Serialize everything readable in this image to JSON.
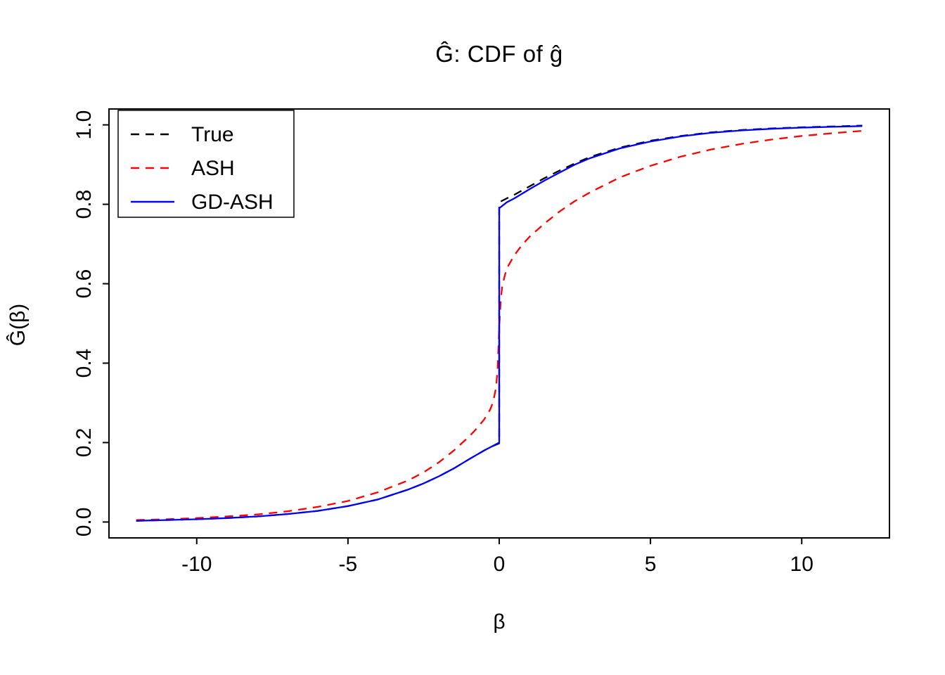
{
  "chart_data": {
    "type": "line",
    "title": "Ĝ: CDF of ĝ",
    "xlabel": "β",
    "ylabel": "Ĝ(β)",
    "xlim": [
      -12.9,
      12.9
    ],
    "ylim": [
      -0.04,
      1.04
    ],
    "grid": false,
    "legend_position": "top-left",
    "xticks": [
      {
        "value": -10,
        "label": "-10"
      },
      {
        "value": -5,
        "label": "-5"
      },
      {
        "value": 0,
        "label": "0"
      },
      {
        "value": 5,
        "label": "5"
      },
      {
        "value": 10,
        "label": "10"
      }
    ],
    "yticks": [
      {
        "value": 0.0,
        "label": "0.0"
      },
      {
        "value": 0.2,
        "label": "0.2"
      },
      {
        "value": 0.4,
        "label": "0.4"
      },
      {
        "value": 0.6,
        "label": "0.6"
      },
      {
        "value": 0.8,
        "label": "0.8"
      },
      {
        "value": 1.0,
        "label": "1.0"
      }
    ],
    "legend": {
      "entries": [
        {
          "label": "True",
          "color": "#000000",
          "dash": "dashed"
        },
        {
          "label": "ASH",
          "color": "#FF0000",
          "dash": "dashed"
        },
        {
          "label": "GD-ASH",
          "color": "#0000FF",
          "dash": "solid"
        }
      ]
    },
    "series": [
      {
        "name": "True",
        "color": "#000000",
        "dash": "dashed",
        "points": [
          [
            -12,
            0.003
          ],
          [
            -11,
            0.005
          ],
          [
            -10,
            0.007
          ],
          [
            -9,
            0.01
          ],
          [
            -8,
            0.014
          ],
          [
            -7,
            0.02
          ],
          [
            -6,
            0.028
          ],
          [
            -5,
            0.04
          ],
          [
            -4,
            0.057
          ],
          [
            -3,
            0.082
          ],
          [
            -2.5,
            0.097
          ],
          [
            -2,
            0.115
          ],
          [
            -1.5,
            0.135
          ],
          [
            -1,
            0.158
          ],
          [
            -0.5,
            0.18
          ],
          [
            -0.25,
            0.19
          ],
          [
            0,
            0.198
          ],
          [
            0,
            0.805
          ],
          [
            0.25,
            0.815
          ],
          [
            0.5,
            0.824
          ],
          [
            1,
            0.845
          ],
          [
            1.5,
            0.866
          ],
          [
            2,
            0.885
          ],
          [
            2.5,
            0.903
          ],
          [
            3,
            0.919
          ],
          [
            4,
            0.943
          ],
          [
            5,
            0.96
          ],
          [
            6,
            0.972
          ],
          [
            7,
            0.981
          ],
          [
            8,
            0.987
          ],
          [
            9,
            0.991
          ],
          [
            10,
            0.994
          ],
          [
            11,
            0.996
          ],
          [
            12,
            0.998
          ]
        ]
      },
      {
        "name": "ASH",
        "color": "#FF0000",
        "dash": "dashed",
        "points": [
          [
            -12,
            0.005
          ],
          [
            -11,
            0.007
          ],
          [
            -10,
            0.01
          ],
          [
            -9,
            0.014
          ],
          [
            -8,
            0.019
          ],
          [
            -7,
            0.027
          ],
          [
            -6,
            0.038
          ],
          [
            -5,
            0.053
          ],
          [
            -4,
            0.075
          ],
          [
            -3,
            0.105
          ],
          [
            -2.5,
            0.125
          ],
          [
            -2,
            0.15
          ],
          [
            -1.5,
            0.18
          ],
          [
            -1,
            0.215
          ],
          [
            -0.75,
            0.235
          ],
          [
            -0.5,
            0.258
          ],
          [
            -0.3,
            0.283
          ],
          [
            -0.2,
            0.303
          ],
          [
            -0.1,
            0.34
          ],
          [
            -0.05,
            0.39
          ],
          [
            0,
            0.49
          ],
          [
            0.05,
            0.56
          ],
          [
            0.1,
            0.595
          ],
          [
            0.2,
            0.625
          ],
          [
            0.3,
            0.645
          ],
          [
            0.5,
            0.672
          ],
          [
            0.75,
            0.697
          ],
          [
            1,
            0.718
          ],
          [
            1.5,
            0.752
          ],
          [
            2,
            0.782
          ],
          [
            2.5,
            0.808
          ],
          [
            3,
            0.83
          ],
          [
            4,
            0.868
          ],
          [
            5,
            0.897
          ],
          [
            6,
            0.92
          ],
          [
            7,
            0.938
          ],
          [
            8,
            0.952
          ],
          [
            9,
            0.963
          ],
          [
            10,
            0.972
          ],
          [
            11,
            0.979
          ],
          [
            12,
            0.985
          ]
        ]
      },
      {
        "name": "GD-ASH",
        "color": "#0000FF",
        "dash": "solid",
        "points": [
          [
            -12,
            0.003
          ],
          [
            -11,
            0.005
          ],
          [
            -10,
            0.007
          ],
          [
            -9,
            0.01
          ],
          [
            -8,
            0.014
          ],
          [
            -7,
            0.02
          ],
          [
            -6,
            0.028
          ],
          [
            -5,
            0.04
          ],
          [
            -4,
            0.057
          ],
          [
            -3,
            0.082
          ],
          [
            -2.5,
            0.097
          ],
          [
            -2,
            0.115
          ],
          [
            -1.5,
            0.135
          ],
          [
            -1,
            0.158
          ],
          [
            -0.5,
            0.18
          ],
          [
            -0.25,
            0.19
          ],
          [
            0,
            0.2
          ],
          [
            0,
            0.79
          ],
          [
            0.25,
            0.805
          ],
          [
            0.5,
            0.815
          ],
          [
            1,
            0.838
          ],
          [
            1.5,
            0.86
          ],
          [
            2,
            0.88
          ],
          [
            2.5,
            0.9
          ],
          [
            3,
            0.916
          ],
          [
            4,
            0.941
          ],
          [
            5,
            0.958
          ],
          [
            6,
            0.971
          ],
          [
            7,
            0.98
          ],
          [
            8,
            0.986
          ],
          [
            9,
            0.99
          ],
          [
            10,
            0.993
          ],
          [
            11,
            0.995
          ],
          [
            12,
            0.997
          ]
        ]
      }
    ]
  }
}
